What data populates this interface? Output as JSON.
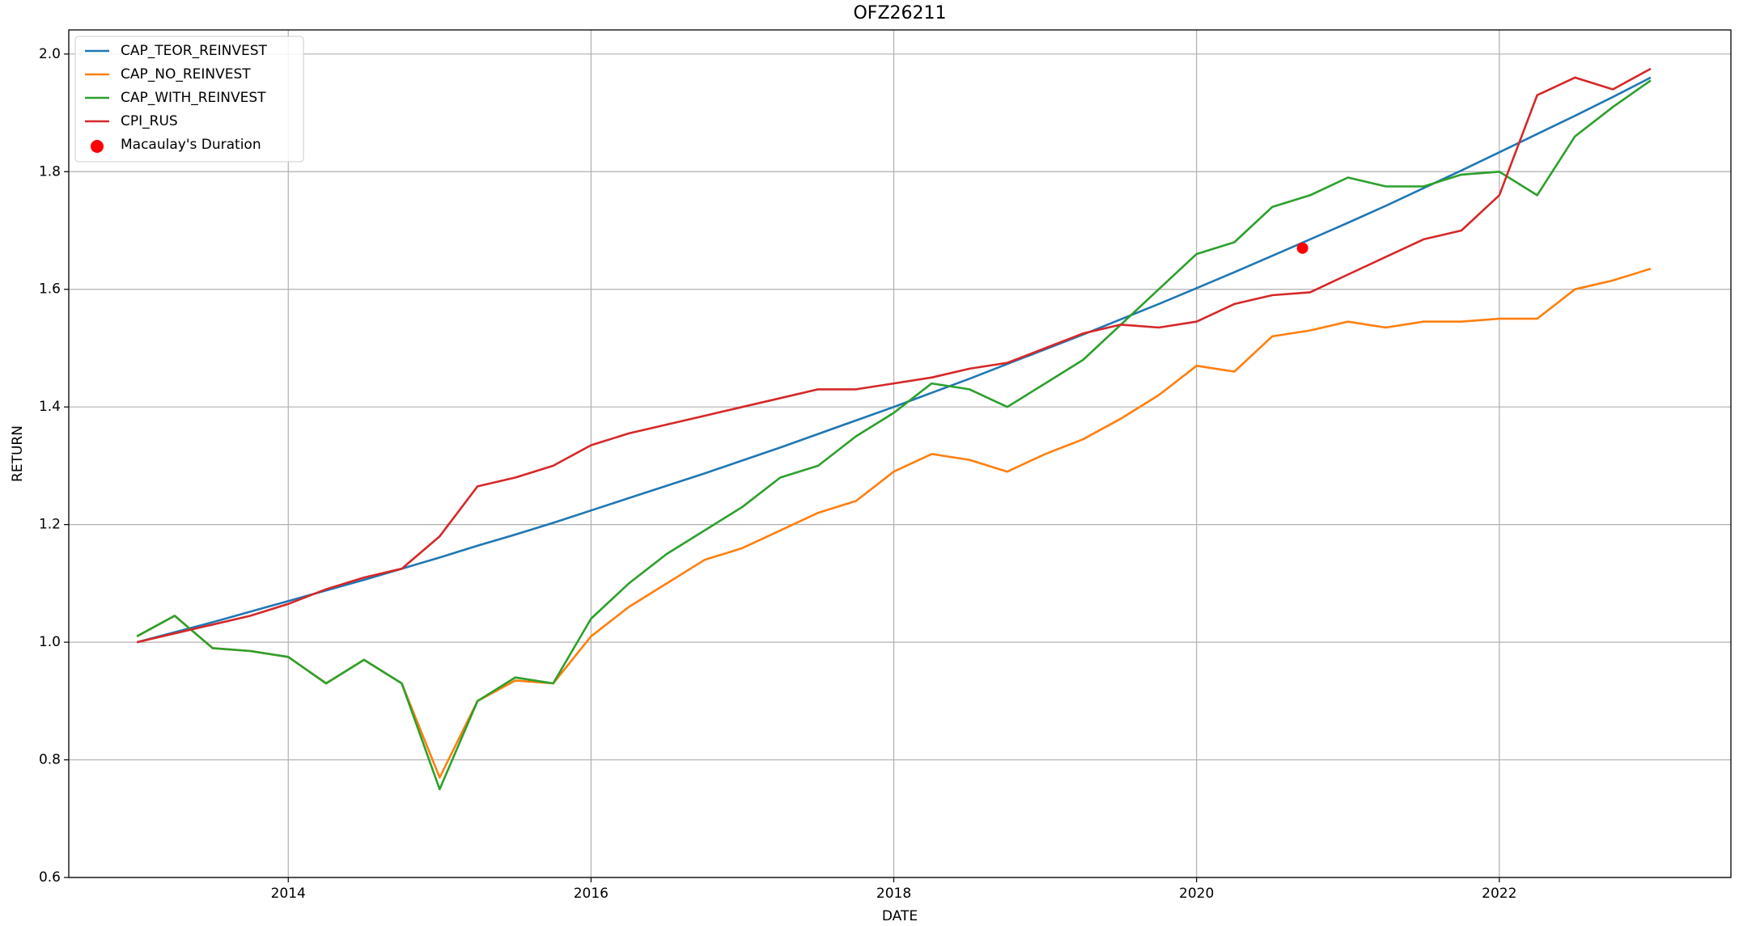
{
  "chart_data": {
    "type": "line",
    "title": "OFZ26211",
    "x_label": "DATE",
    "y_label": "RETURN",
    "x": [
      2013,
      2013.25,
      2013.5,
      2013.75,
      2014,
      2014.25,
      2014.5,
      2014.75,
      2015,
      2015.25,
      2015.5,
      2015.75,
      2016,
      2016.25,
      2016.5,
      2016.75,
      2017,
      2017.25,
      2017.5,
      2017.75,
      2018,
      2018.25,
      2018.5,
      2018.75,
      2019,
      2019.25,
      2019.5,
      2019.75,
      2020,
      2020.25,
      2020.5,
      2020.75,
      2021,
      2021.25,
      2021.5,
      2021.75,
      2022,
      2022.25,
      2022.5,
      2022.75,
      2023
    ],
    "series": [
      {
        "name": "CAP_TEOR_REINVEST",
        "color": "#1f77b4",
        "values": [
          1.0,
          1.017,
          1.034,
          1.052,
          1.07,
          1.088,
          1.106,
          1.125,
          1.144,
          1.164,
          1.183,
          1.203,
          1.224,
          1.245,
          1.266,
          1.287,
          1.309,
          1.331,
          1.354,
          1.377,
          1.4,
          1.424,
          1.448,
          1.473,
          1.498,
          1.523,
          1.549,
          1.575,
          1.602,
          1.629,
          1.657,
          1.685,
          1.713,
          1.742,
          1.772,
          1.802,
          1.833,
          1.864,
          1.895,
          1.927,
          1.96
        ]
      },
      {
        "name": "CAP_NO_REINVEST",
        "color": "#ff7f0e",
        "values": [
          1.01,
          1.045,
          0.99,
          0.985,
          0.975,
          0.93,
          0.97,
          0.93,
          0.77,
          0.9,
          0.935,
          0.93,
          1.01,
          1.06,
          1.1,
          1.14,
          1.16,
          1.19,
          1.22,
          1.24,
          1.29,
          1.32,
          1.31,
          1.29,
          1.32,
          1.345,
          1.38,
          1.42,
          1.47,
          1.46,
          1.52,
          1.53,
          1.545,
          1.535,
          1.545,
          1.545,
          1.55,
          1.55,
          1.6,
          1.615,
          1.635
        ]
      },
      {
        "name": "CAP_WITH_REINVEST",
        "color": "#2ca02c",
        "values": [
          1.01,
          1.045,
          0.99,
          0.985,
          0.975,
          0.93,
          0.97,
          0.93,
          0.75,
          0.9,
          0.94,
          0.93,
          1.04,
          1.1,
          1.15,
          1.19,
          1.23,
          1.28,
          1.3,
          1.35,
          1.39,
          1.44,
          1.43,
          1.4,
          1.44,
          1.48,
          1.54,
          1.6,
          1.66,
          1.68,
          1.74,
          1.76,
          1.79,
          1.775,
          1.775,
          1.795,
          1.8,
          1.76,
          1.86,
          1.91,
          1.955
        ]
      },
      {
        "name": "CPI_RUS",
        "color": "#d62728",
        "values": [
          1.0,
          1.015,
          1.03,
          1.045,
          1.065,
          1.09,
          1.11,
          1.125,
          1.18,
          1.265,
          1.28,
          1.3,
          1.335,
          1.355,
          1.37,
          1.385,
          1.4,
          1.415,
          1.43,
          1.43,
          1.44,
          1.45,
          1.465,
          1.475,
          1.5,
          1.525,
          1.54,
          1.535,
          1.545,
          1.575,
          1.59,
          1.595,
          1.625,
          1.655,
          1.685,
          1.7,
          1.76,
          1.93,
          1.96,
          1.94,
          1.975
        ]
      }
    ],
    "markers": {
      "name": "Macaulay's Duration",
      "color": "#ff0000",
      "x": [
        2020.7
      ],
      "y": [
        1.67
      ]
    },
    "xlim": [
      2012.55,
      2023.53
    ],
    "xticks": [
      2014,
      2016,
      2018,
      2020,
      2022
    ],
    "ylim": [
      0.6,
      2.041
    ],
    "yticks": [
      0.6,
      0.8,
      {
        "value": 1,
        "label": "1.0"
      },
      1.2,
      1.4,
      1.6,
      1.8,
      {
        "value": 2,
        "label": "2.0"
      }
    ],
    "grid": true,
    "legend": "upper left"
  }
}
